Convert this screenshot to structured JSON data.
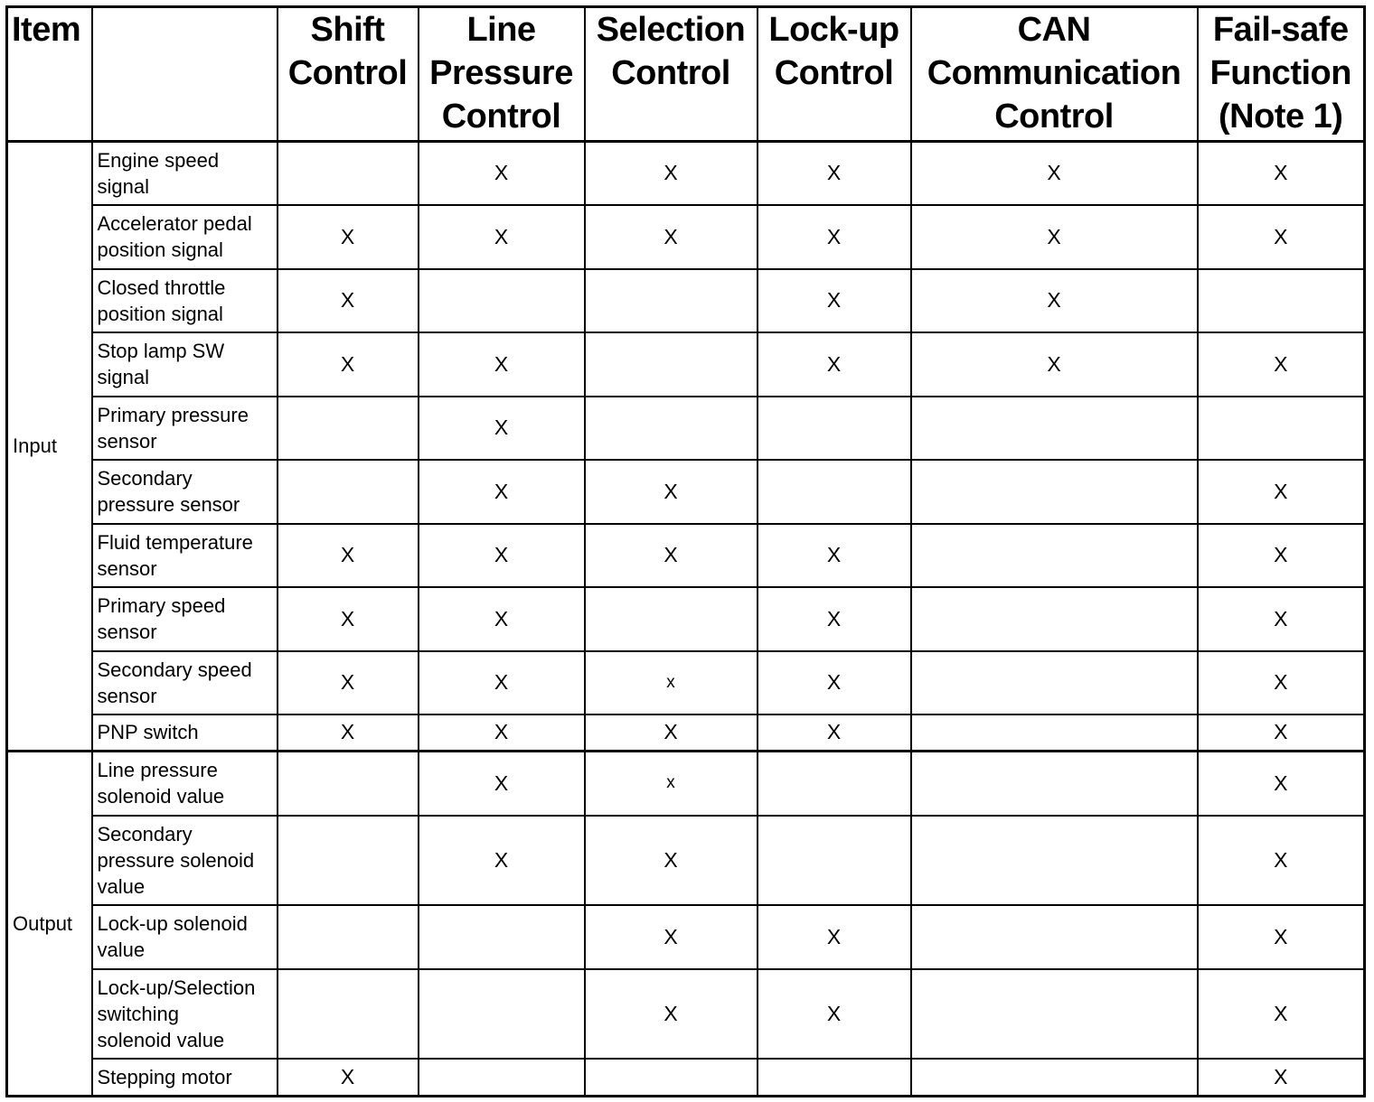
{
  "header": {
    "item": "Item",
    "blank": "",
    "columns": [
      "Shift\nControl",
      "Line\nPressure\nControl",
      "Selection\nControl",
      "Lock-up\nControl",
      "CAN\nCommunication\nControl",
      "Fail-safe\nFunction\n(Note 1)"
    ]
  },
  "groups": [
    {
      "label": "Input",
      "rows": [
        {
          "label": "Engine speed\nsignal",
          "marks": [
            "",
            "X",
            "X",
            "X",
            "X",
            "X"
          ]
        },
        {
          "label": "Accelerator pedal\nposition signal",
          "marks": [
            "X",
            "X",
            "X",
            "X",
            "X",
            "X"
          ]
        },
        {
          "label": "Closed throttle\nposition signal",
          "marks": [
            "X",
            "",
            "",
            "X",
            "X",
            ""
          ]
        },
        {
          "label": "Stop lamp SW\nsignal",
          "marks": [
            "X",
            "X",
            "",
            "X",
            "X",
            "X"
          ]
        },
        {
          "label": "Primary pressure\nsensor",
          "marks": [
            "",
            "X",
            "",
            "",
            "",
            ""
          ]
        },
        {
          "label": "Secondary\npressure sensor",
          "marks": [
            "",
            "X",
            "X",
            "",
            "",
            "X"
          ]
        },
        {
          "label": "Fluid temperature\nsensor",
          "marks": [
            "X",
            "X",
            "X",
            "X",
            "",
            "X"
          ]
        },
        {
          "label": "Primary speed\nsensor",
          "marks": [
            "X",
            "X",
            "",
            "X",
            "",
            "X"
          ]
        },
        {
          "label": "Secondary speed\nsensor",
          "marks": [
            "X",
            "X",
            "x",
            "X",
            "",
            "X"
          ]
        },
        {
          "label": "PNP switch",
          "marks": [
            "X",
            "X",
            "X",
            "X",
            "",
            "X"
          ]
        }
      ]
    },
    {
      "label": "Output",
      "rows": [
        {
          "label": "Line pressure\nsolenoid value",
          "marks": [
            "",
            "X",
            "x",
            "",
            "",
            "X"
          ]
        },
        {
          "label": "Secondary\npressure solenoid\nvalue",
          "marks": [
            "",
            "X",
            "X",
            "",
            "",
            "X"
          ]
        },
        {
          "label": "Lock-up solenoid\nvalue",
          "marks": [
            "",
            "",
            "X",
            "X",
            "",
            "X"
          ]
        },
        {
          "label": "Lock-up/Selection\nswitching\nsolenoid value",
          "marks": [
            "",
            "",
            "X",
            "X",
            "",
            "X"
          ]
        },
        {
          "label": "Stepping motor",
          "marks": [
            "X",
            "",
            "",
            "",
            "",
            "X"
          ]
        }
      ]
    }
  ]
}
